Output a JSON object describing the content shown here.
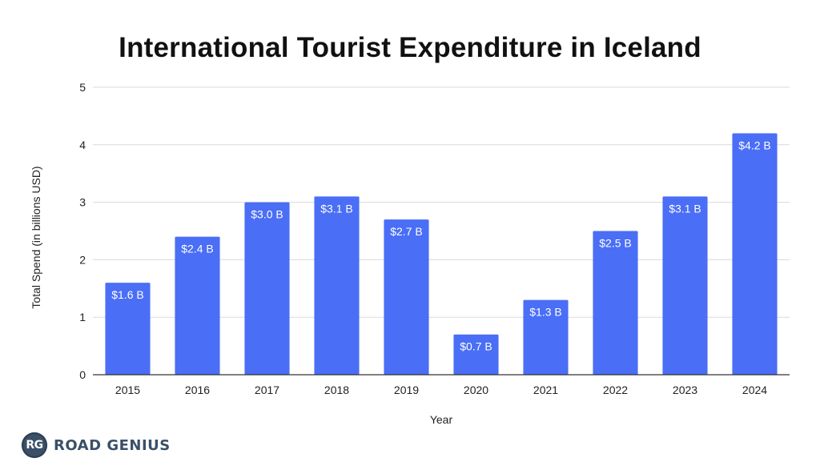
{
  "chart_data": {
    "type": "bar",
    "title": "International Tourist Expenditure in Iceland",
    "xlabel": "Year",
    "ylabel": "Total Spend (in billions USD)",
    "categories": [
      "2015",
      "2016",
      "2017",
      "2018",
      "2019",
      "2020",
      "2021",
      "2022",
      "2023",
      "2024"
    ],
    "values": [
      1.6,
      2.4,
      3.0,
      3.1,
      2.7,
      0.7,
      1.3,
      2.5,
      3.1,
      4.2
    ],
    "data_labels": [
      "$1.6 B",
      "$2.4 B",
      "$3.0 B",
      "$3.1 B",
      "$2.7 B",
      "$0.7 B",
      "$1.3 B",
      "$2.5 B",
      "$3.1 B",
      "$4.2 B"
    ],
    "ylim": [
      0,
      5
    ],
    "yticks": [
      "0",
      "1",
      "2",
      "3",
      "4",
      "5"
    ],
    "grid": true,
    "bar_color": "#4a6ef5",
    "grid_color": "#d9d9d9"
  },
  "brand": {
    "badge": "RG",
    "name": "ROAD GENIUS"
  }
}
